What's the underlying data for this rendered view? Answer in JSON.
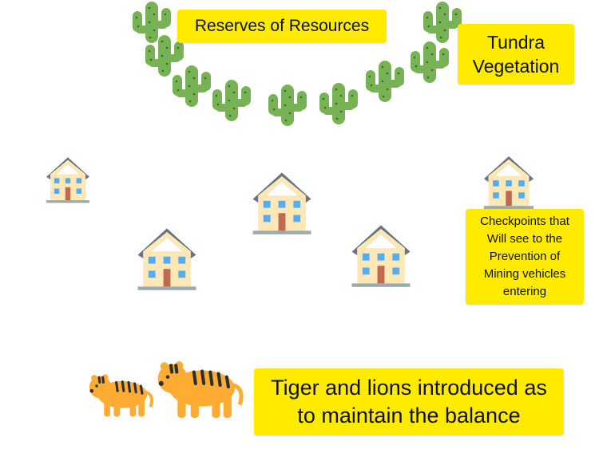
{
  "labels": {
    "reserves": "Reserves of Resources",
    "tundra": [
      "Tundra",
      "Vegetation"
    ],
    "checkpoints": [
      "Checkpoints that",
      "Will see to the",
      "Prevention of",
      "Mining vehicles",
      "entering"
    ],
    "tigers": [
      "Tiger and lions introduced as",
      "to maintain the balance"
    ]
  },
  "icons": {
    "cactus": "cactus-icon",
    "house": "house-icon",
    "tiger": "tiger-icon"
  },
  "colors": {
    "label_bg": "#ffeb00",
    "cactus": "#77b255",
    "house_wall": "#ffe8b6",
    "house_roof": "#66757f",
    "window": "#55acee",
    "door": "#c1694f",
    "tiger": "#ffac33"
  }
}
